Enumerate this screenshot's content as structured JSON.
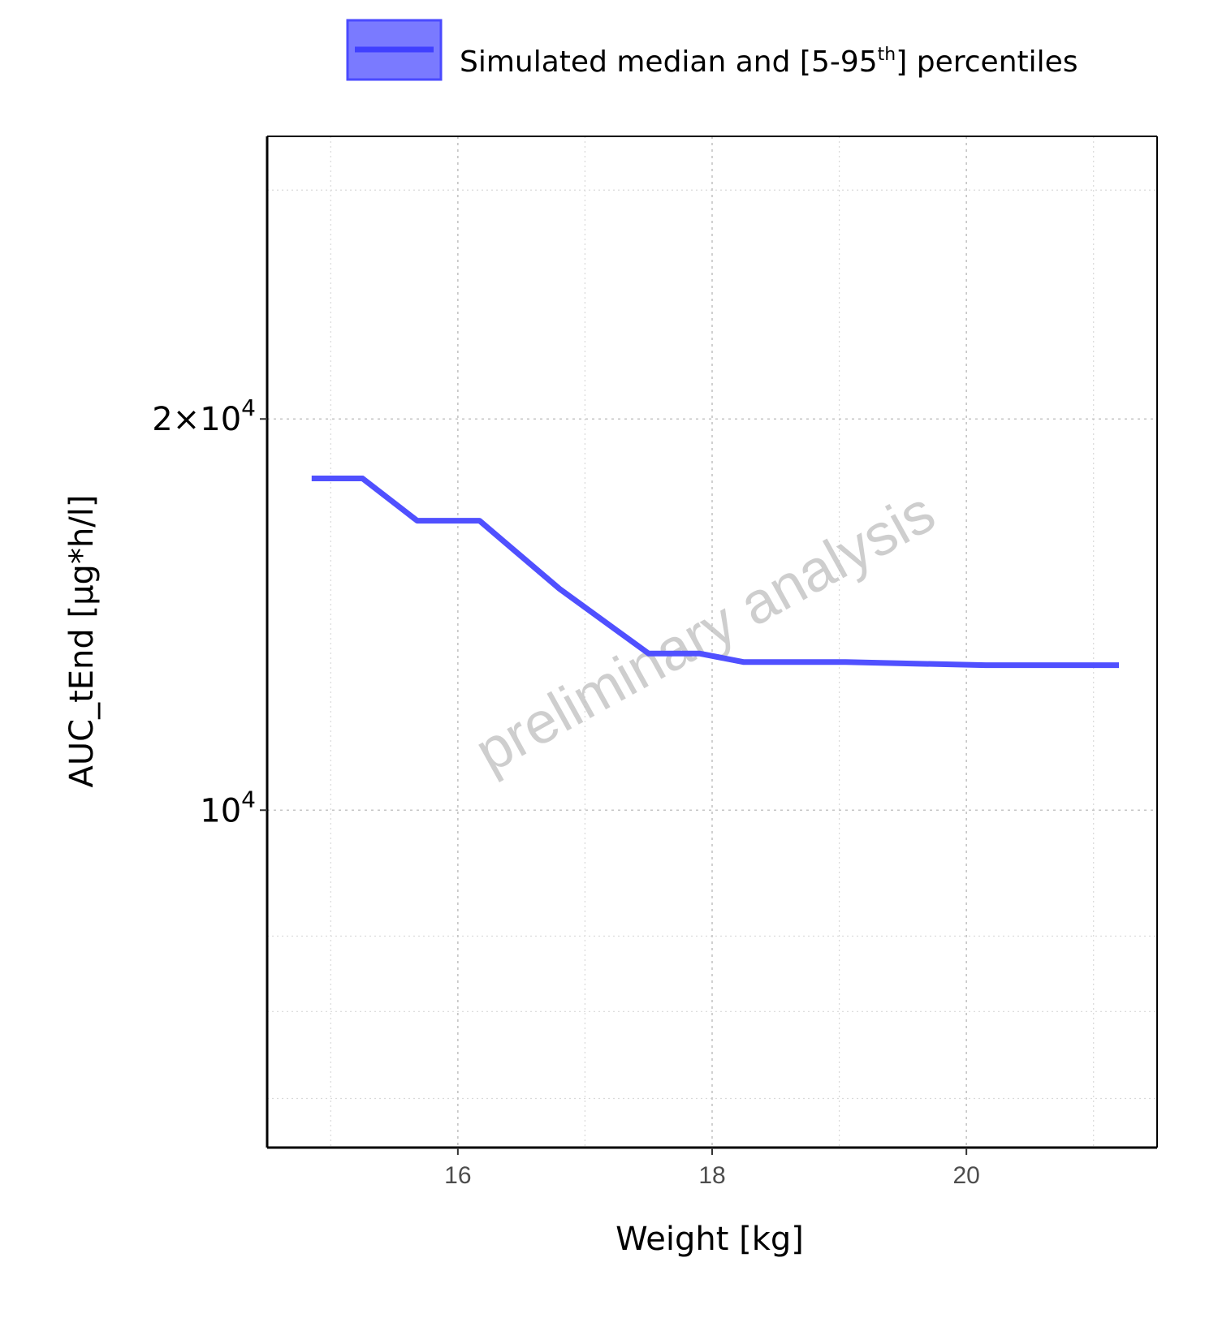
{
  "chart_data": {
    "type": "line",
    "title": "",
    "xlabel": "Weight [kg]",
    "ylabel": "AUC_tEnd [µg*h/l]",
    "y_scale": "log",
    "xlim": [
      14.5,
      21.5
    ],
    "ylim": [
      5500,
      33000
    ],
    "x_ticks": [
      16,
      18,
      20
    ],
    "x_tick_labels": [
      "16",
      "18",
      "20"
    ],
    "y_ticks": [
      {
        "value": 10000,
        "base": "10",
        "exp": "4"
      },
      {
        "value": 20000,
        "base": "2×10",
        "exp": "4"
      }
    ],
    "grid": true,
    "legend": {
      "position": "top",
      "entries": [
        {
          "label_main": "Simulated median and [5-95",
          "label_sup": "th",
          "label_end": "] percentiles",
          "color": "#5050ff"
        }
      ]
    },
    "watermark": "preliminary analysis",
    "series": [
      {
        "color": "#5050ff",
        "x": [
          14.85,
          15.25,
          15.68,
          16.17,
          16.8,
          17.5,
          17.9,
          18.25,
          19.05,
          20.15,
          21.2
        ],
        "y": [
          18000,
          18000,
          16700,
          16700,
          14800,
          13200,
          13200,
          13000,
          13000,
          12930,
          12930
        ]
      }
    ]
  }
}
